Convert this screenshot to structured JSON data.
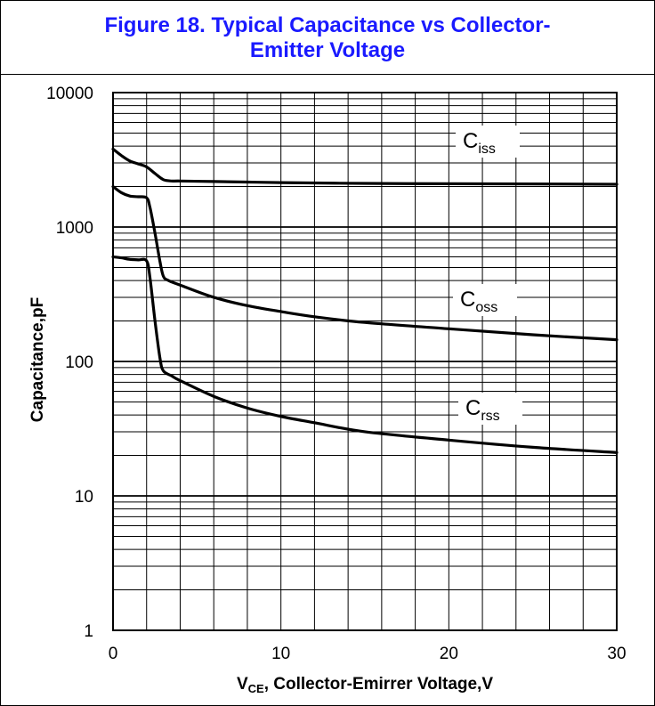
{
  "title": "Figure 18. Typical Capacitance vs Collector-\nEmitter Voltage",
  "chart_data": {
    "type": "line",
    "xlabel_main": "V",
    "xlabel_sub": "CE",
    "xlabel_rest": ", Collector-Emirrer Voltage,V",
    "ylabel": "Capacitance,pF",
    "xlim": [
      0,
      30
    ],
    "ylim": [
      1,
      10000
    ],
    "y_scale": "log",
    "x_ticks": [
      "0",
      "10",
      "20",
      "30"
    ],
    "x_tick_values": [
      0,
      10,
      20,
      30
    ],
    "y_ticks": [
      "1",
      "10",
      "100",
      "1000",
      "10000"
    ],
    "y_tick_values": [
      1,
      10,
      100,
      1000,
      10000
    ],
    "grid": true,
    "series": [
      {
        "name": "Ciss",
        "label_main": "C",
        "label_sub": "iss",
        "x": [
          0,
          0.5,
          1,
          1.5,
          2,
          2.5,
          3,
          3.5,
          4,
          6,
          8,
          10,
          15,
          20,
          25,
          30
        ],
        "y": [
          3800,
          3400,
          3100,
          2950,
          2800,
          2500,
          2250,
          2200,
          2200,
          2180,
          2160,
          2140,
          2110,
          2100,
          2090,
          2080
        ]
      },
      {
        "name": "Coss",
        "label_main": "C",
        "label_sub": "oss",
        "x": [
          0,
          0.5,
          1,
          1.5,
          2,
          2.2,
          2.5,
          2.8,
          3,
          3.3,
          4,
          6,
          8,
          10,
          12,
          15,
          20,
          25,
          30
        ],
        "y": [
          2000,
          1800,
          1700,
          1680,
          1650,
          1400,
          900,
          550,
          430,
          400,
          370,
          300,
          260,
          235,
          215,
          195,
          175,
          158,
          145
        ]
      },
      {
        "name": "Crss",
        "label_main": "C",
        "label_sub": "rss",
        "x": [
          0,
          0.5,
          1,
          1.5,
          2,
          2.2,
          2.5,
          2.8,
          3,
          3.5,
          4,
          6,
          8,
          10,
          12,
          15,
          20,
          25,
          30
        ],
        "y": [
          600,
          590,
          575,
          570,
          560,
          420,
          200,
          105,
          85,
          78,
          72,
          55,
          45,
          39,
          35,
          30,
          26,
          23,
          21
        ]
      }
    ],
    "line_color": "#000000"
  }
}
